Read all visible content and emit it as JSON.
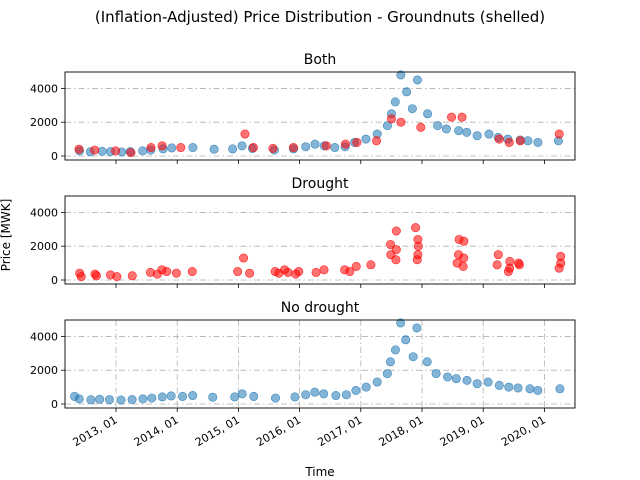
{
  "figure": {
    "title": "(Inflation-Adjusted) Price Distribution - Groundnuts (shelled)",
    "ylabel": "Price [MWK]",
    "xlabel": "Time"
  },
  "colors": {
    "no_drought": "#1f77b4",
    "drought": "#ff0000",
    "grid": "#b0b0b0"
  },
  "chart_data": [
    {
      "type": "scatter",
      "title": "Both",
      "x_ticks": [
        "2013, 01",
        "2014, 01",
        "2015, 01",
        "2016, 01",
        "2017, 01",
        "2018, 01",
        "2019, 01",
        "2020, 01"
      ],
      "x_range": [
        "2012-03",
        "2020-07"
      ],
      "ylim": [
        0,
        5000
      ],
      "y_ticks": [
        0,
        2000,
        4000
      ],
      "grid": true,
      "series": [
        {
          "class": "no_drought",
          "points": [
            [
              "2012-06",
              300
            ],
            [
              "2012-08",
              250
            ],
            [
              "2012-10",
              280
            ],
            [
              "2012-12",
              260
            ],
            [
              "2013-02",
              240
            ],
            [
              "2013-04",
              260
            ],
            [
              "2013-06",
              300
            ],
            [
              "2013-08",
              350
            ],
            [
              "2013-10",
              420
            ],
            [
              "2013-12",
              480
            ],
            [
              "2014-04",
              500
            ],
            [
              "2014-08",
              400
            ],
            [
              "2014-12",
              420
            ],
            [
              "2015-02",
              600
            ],
            [
              "2015-04",
              450
            ],
            [
              "2015-08",
              350
            ],
            [
              "2015-12",
              420
            ],
            [
              "2016-02",
              550
            ],
            [
              "2016-04",
              700
            ],
            [
              "2016-06",
              600
            ],
            [
              "2016-08",
              500
            ],
            [
              "2016-10",
              550
            ],
            [
              "2016-12",
              800
            ],
            [
              "2017-02",
              1000
            ],
            [
              "2017-04",
              1300
            ],
            [
              "2017-06",
              1800
            ],
            [
              "2017-07",
              2500
            ],
            [
              "2017-08",
              3200
            ],
            [
              "2017-09",
              4800
            ],
            [
              "2017-10",
              3800
            ],
            [
              "2017-11",
              2800
            ],
            [
              "2017-12",
              4500
            ],
            [
              "2018-02",
              2500
            ],
            [
              "2018-04",
              1800
            ],
            [
              "2018-06",
              1600
            ],
            [
              "2018-08",
              1500
            ],
            [
              "2018-10",
              1400
            ],
            [
              "2018-12",
              1200
            ],
            [
              "2019-02",
              1300
            ],
            [
              "2019-04",
              1100
            ],
            [
              "2019-06",
              1000
            ],
            [
              "2019-08",
              950
            ],
            [
              "2019-10",
              900
            ],
            [
              "2019-12",
              800
            ],
            [
              "2020-04",
              900
            ]
          ]
        },
        {
          "class": "drought",
          "points": [
            [
              "2012-06",
              400
            ],
            [
              "2012-09",
              350
            ],
            [
              "2013-01",
              300
            ],
            [
              "2013-04",
              200
            ],
            [
              "2013-08",
              500
            ],
            [
              "2013-10",
              600
            ],
            [
              "2014-02",
              500
            ],
            [
              "2015-02",
              1300
            ],
            [
              "2015-04",
              500
            ],
            [
              "2015-08",
              450
            ],
            [
              "2015-12",
              500
            ],
            [
              "2016-06",
              600
            ],
            [
              "2016-10",
              700
            ],
            [
              "2016-12",
              800
            ],
            [
              "2017-04",
              900
            ],
            [
              "2017-07",
              2200
            ],
            [
              "2017-09",
              2000
            ],
            [
              "2018-01",
              1700
            ],
            [
              "2018-07",
              2300
            ],
            [
              "2018-09",
              2300
            ],
            [
              "2019-04",
              1000
            ],
            [
              "2019-06",
              800
            ],
            [
              "2019-08",
              900
            ],
            [
              "2020-04",
              1300
            ]
          ]
        }
      ]
    },
    {
      "type": "scatter",
      "title": "Drought",
      "x_ticks": [
        "2013, 01",
        "2014, 01",
        "2015, 01",
        "2016, 01",
        "2017, 01",
        "2018, 01",
        "2019, 01",
        "2020, 01"
      ],
      "x_range": [
        "2012-03",
        "2020-07"
      ],
      "ylim": [
        0,
        5000
      ],
      "y_ticks": [
        0,
        2000,
        4000
      ],
      "grid": true,
      "series": [
        {
          "class": "drought",
          "points": [
            [
              "2012-06",
              400
            ],
            [
              "2012-06",
              200
            ],
            [
              "2012-09",
              350
            ],
            [
              "2012-09",
              250
            ],
            [
              "2012-12",
              300
            ],
            [
              "2013-01",
              200
            ],
            [
              "2013-04",
              250
            ],
            [
              "2013-08",
              450
            ],
            [
              "2013-09",
              350
            ],
            [
              "2013-10",
              600
            ],
            [
              "2013-11",
              500
            ],
            [
              "2014-01",
              400
            ],
            [
              "2014-04",
              500
            ],
            [
              "2015-01",
              500
            ],
            [
              "2015-02",
              1300
            ],
            [
              "2015-03",
              400
            ],
            [
              "2015-08",
              500
            ],
            [
              "2015-09",
              400
            ],
            [
              "2015-10",
              600
            ],
            [
              "2015-11",
              450
            ],
            [
              "2015-12",
              350
            ],
            [
              "2016-01",
              500
            ],
            [
              "2016-04",
              450
            ],
            [
              "2016-06",
              600
            ],
            [
              "2016-10",
              600
            ],
            [
              "2016-11",
              500
            ],
            [
              "2016-12",
              800
            ],
            [
              "2017-03",
              900
            ],
            [
              "2017-07",
              2100
            ],
            [
              "2017-07",
              1500
            ],
            [
              "2017-08",
              2900
            ],
            [
              "2017-08",
              1800
            ],
            [
              "2017-08",
              1200
            ],
            [
              "2017-12",
              3100
            ],
            [
              "2017-12",
              2400
            ],
            [
              "2017-12",
              2000
            ],
            [
              "2017-12",
              1500
            ],
            [
              "2017-12",
              1200
            ],
            [
              "2018-08",
              2400
            ],
            [
              "2018-08",
              1500
            ],
            [
              "2018-08",
              1000
            ],
            [
              "2018-09",
              2300
            ],
            [
              "2018-09",
              1300
            ],
            [
              "2018-09",
              800
            ],
            [
              "2019-04",
              1500
            ],
            [
              "2019-04",
              900
            ],
            [
              "2019-06",
              1100
            ],
            [
              "2019-06",
              700
            ],
            [
              "2019-06",
              500
            ],
            [
              "2019-08",
              1000
            ],
            [
              "2019-08",
              900
            ],
            [
              "2020-04",
              1400
            ],
            [
              "2020-04",
              1000
            ],
            [
              "2020-04",
              700
            ]
          ]
        }
      ]
    },
    {
      "type": "scatter",
      "title": "No drought",
      "x_ticks": [
        "2013, 01",
        "2014, 01",
        "2015, 01",
        "2016, 01",
        "2017, 01",
        "2018, 01",
        "2019, 01",
        "2020, 01"
      ],
      "x_range": [
        "2012-03",
        "2020-07"
      ],
      "ylim": [
        0,
        5000
      ],
      "y_ticks": [
        0,
        2000,
        4000
      ],
      "grid": true,
      "series": [
        {
          "class": "no_drought",
          "points": [
            [
              "2012-05",
              450
            ],
            [
              "2012-06",
              300
            ],
            [
              "2012-08",
              250
            ],
            [
              "2012-10",
              280
            ],
            [
              "2012-12",
              260
            ],
            [
              "2013-02",
              240
            ],
            [
              "2013-04",
              260
            ],
            [
              "2013-06",
              300
            ],
            [
              "2013-08",
              350
            ],
            [
              "2013-10",
              420
            ],
            [
              "2013-12",
              480
            ],
            [
              "2014-02",
              450
            ],
            [
              "2014-04",
              500
            ],
            [
              "2014-08",
              400
            ],
            [
              "2014-12",
              420
            ],
            [
              "2015-02",
              600
            ],
            [
              "2015-04",
              450
            ],
            [
              "2015-08",
              350
            ],
            [
              "2015-12",
              420
            ],
            [
              "2016-02",
              550
            ],
            [
              "2016-04",
              700
            ],
            [
              "2016-06",
              600
            ],
            [
              "2016-08",
              500
            ],
            [
              "2016-10",
              550
            ],
            [
              "2016-12",
              800
            ],
            [
              "2017-02",
              1000
            ],
            [
              "2017-04",
              1300
            ],
            [
              "2017-06",
              1800
            ],
            [
              "2017-07",
              2500
            ],
            [
              "2017-08",
              3200
            ],
            [
              "2017-09",
              4800
            ],
            [
              "2017-10",
              3800
            ],
            [
              "2017-11",
              2800
            ],
            [
              "2017-12",
              4500
            ],
            [
              "2018-02",
              2500
            ],
            [
              "2018-04",
              1800
            ],
            [
              "2018-06",
              1600
            ],
            [
              "2018-08",
              1500
            ],
            [
              "2018-10",
              1400
            ],
            [
              "2018-12",
              1200
            ],
            [
              "2019-02",
              1300
            ],
            [
              "2019-04",
              1100
            ],
            [
              "2019-06",
              1000
            ],
            [
              "2019-08",
              950
            ],
            [
              "2019-10",
              900
            ],
            [
              "2019-12",
              800
            ],
            [
              "2020-04",
              900
            ]
          ]
        }
      ]
    }
  ]
}
